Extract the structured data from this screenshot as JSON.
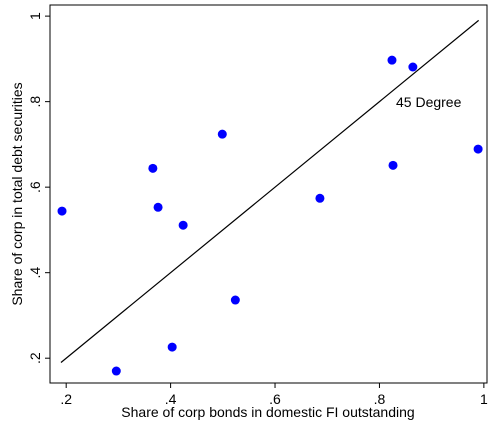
{
  "chart_data": {
    "type": "scatter",
    "x_label": "Share of corp bonds in domestic FI outstanding",
    "y_label": "Share of corp in total debt securities",
    "annotation": "45 Degree",
    "color": "#0000ff",
    "series": [
      {
        "x": [
          0.192,
          0.296,
          0.366,
          0.376,
          0.403,
          0.424,
          0.499,
          0.524,
          0.686,
          0.824,
          0.826,
          0.864,
          0.989
        ],
        "values": [
          0.544,
          0.17,
          0.644,
          0.553,
          0.226,
          0.511,
          0.724,
          0.336,
          0.574,
          0.897,
          0.651,
          0.881,
          0.689
        ]
      }
    ],
    "diagonal": [
      0.19,
      0.99
    ],
    "xlim": [
      0.169,
      1.006
    ],
    "ylim": [
      0.142,
      1.026
    ],
    "xticks": [
      {
        "value": 0.2,
        "label": ".2"
      },
      {
        "value": 0.4,
        "label": ".4"
      },
      {
        "value": 0.6,
        "label": ".6"
      },
      {
        "value": 0.8,
        "label": ".8"
      },
      1
    ],
    "yticks": [
      {
        "value": 0.2,
        "label": ".2"
      },
      {
        "value": 0.4,
        "label": ".4"
      },
      {
        "value": 0.6,
        "label": ".6"
      },
      {
        "value": 0.8,
        "label": ".8"
      },
      1
    ]
  }
}
